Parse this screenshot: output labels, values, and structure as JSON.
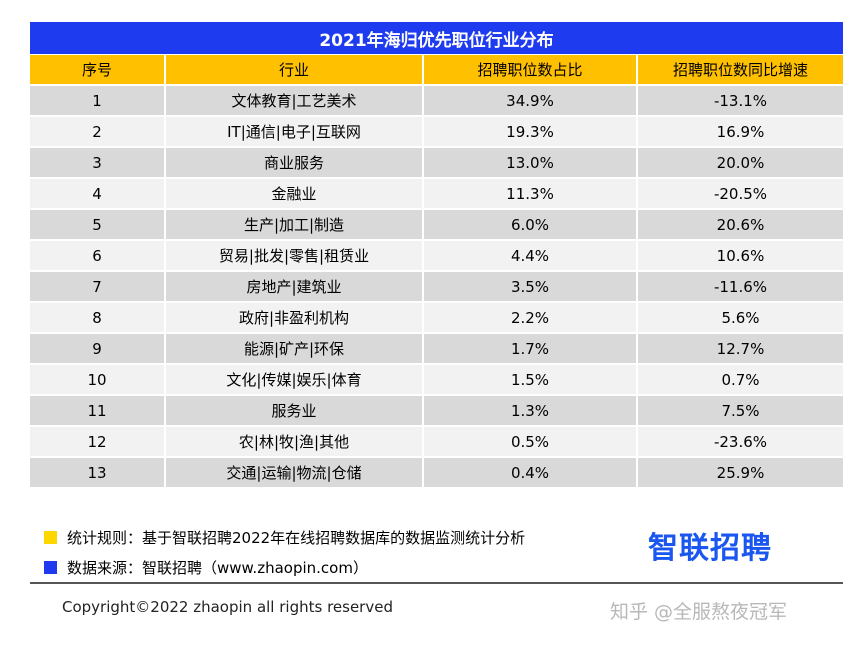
{
  "title": "2021年海归优先职位行业分布",
  "table": {
    "headers": [
      "序号",
      "行业",
      "招聘职位数占比",
      "招聘职位数同比增速"
    ],
    "rows": [
      [
        "1",
        "文体教育|工艺美术",
        "34.9%",
        "-13.1%"
      ],
      [
        "2",
        "IT|通信|电子|互联网",
        "19.3%",
        "16.9%"
      ],
      [
        "3",
        "商业服务",
        "13.0%",
        "20.0%"
      ],
      [
        "4",
        "金融业",
        "11.3%",
        "-20.5%"
      ],
      [
        "5",
        "生产|加工|制造",
        "6.0%",
        "20.6%"
      ],
      [
        "6",
        "贸易|批发|零售|租赁业",
        "4.4%",
        "10.6%"
      ],
      [
        "7",
        "房地产|建筑业",
        "3.5%",
        "-11.6%"
      ],
      [
        "8",
        "政府|非盈利机构",
        "2.2%",
        "5.6%"
      ],
      [
        "9",
        "能源|矿产|环保",
        "1.7%",
        "12.7%"
      ],
      [
        "10",
        "文化|传媒|娱乐|体育",
        "1.5%",
        "0.7%"
      ],
      [
        "11",
        "服务业",
        "1.3%",
        "7.5%"
      ],
      [
        "12",
        "农|林|牧|渔|其他",
        "0.5%",
        "-23.6%"
      ],
      [
        "13",
        "交通|运输|物流|仓储",
        "0.4%",
        "25.9%"
      ]
    ]
  },
  "notes": {
    "rule": "统计规则：基于智联招聘2022年在线招聘数据库的数据监测统计分析",
    "source": "数据来源：智联招聘（www.zhaopin.com）"
  },
  "logo_text": "智联招聘",
  "copyright": "Copyright©2022 zhaopin all rights reserved",
  "watermark": "知乎 @全服熬夜冠军",
  "colors": {
    "title_bg": "#1f3bef",
    "header_bg": "#ffc000",
    "row_dark": "#d9d9d9",
    "row_light": "#f2f2f2",
    "logo": "#1a56f0"
  }
}
